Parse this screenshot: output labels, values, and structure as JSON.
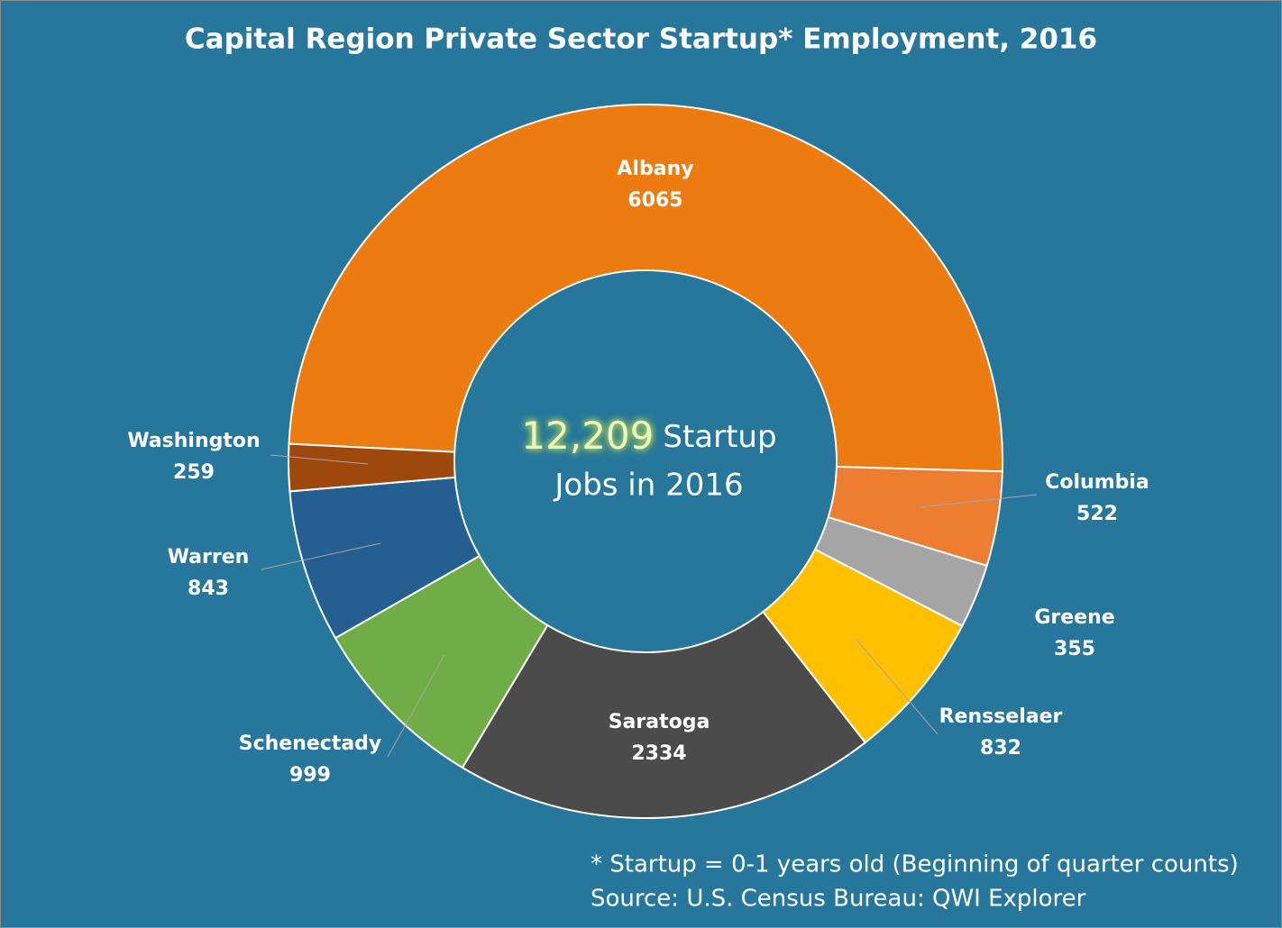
{
  "chart_data": {
    "type": "donut",
    "title": "Capital Region Private Sector Startup* Employment, 2016",
    "categories": [
      "Albany",
      "Columbia",
      "Greene",
      "Rensselaer",
      "Saratoga",
      "Schenectady",
      "Warren",
      "Washington"
    ],
    "values": [
      6065,
      522,
      355,
      832,
      2334,
      999,
      843,
      259
    ],
    "colors": [
      "#ec7c12",
      "#ed7d31",
      "#a5a5a5",
      "#ffc000",
      "#4b4b4b",
      "#70ad47",
      "#255e91",
      "#9e480e"
    ],
    "center_text": {
      "highlight": "12,209",
      "rest": "Startup",
      "line2": "Jobs in 2016"
    },
    "footnotes": [
      "* Startup = 0-1 years old (Beginning of quarter counts)",
      "Source: U.S. Census Bureau: QWI Explorer"
    ]
  }
}
